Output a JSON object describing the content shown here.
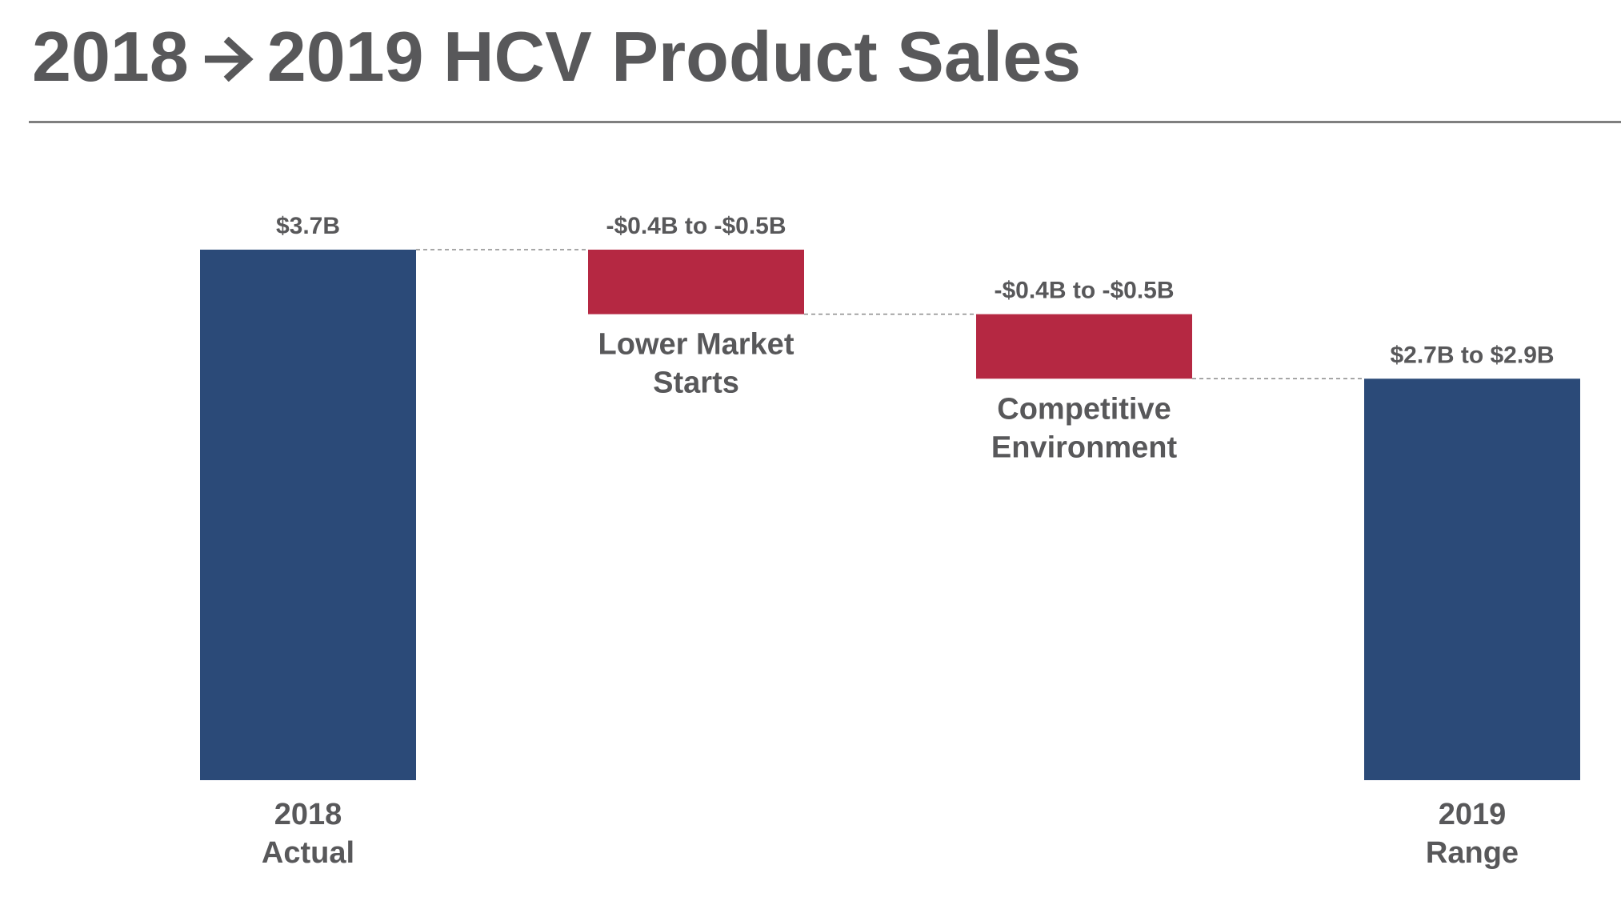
{
  "title": {
    "from_year": "2018",
    "to_text": "2019 HCV Product Sales",
    "arrow_icon": "right-arrow-icon"
  },
  "colors": {
    "total": "#2b4a78",
    "decrease": "#b52842",
    "text": "#58585a",
    "rule": "#7f7f7f"
  },
  "chart_data": {
    "type": "bar",
    "subtype": "waterfall",
    "unit": "$B",
    "ylim": [
      0,
      3.7
    ],
    "categories": [
      "2018 Actual",
      "Lower Market Starts",
      "Competitive Environment",
      "2019 Range"
    ],
    "category_label_lines": [
      [
        "2018",
        "Actual"
      ],
      [
        "Lower Market",
        "Starts"
      ],
      [
        "Competitive",
        "Environment"
      ],
      [
        "2019",
        "Range"
      ]
    ],
    "bars": [
      {
        "kind": "total",
        "start": 0,
        "end": 3.7,
        "label": "$3.7B"
      },
      {
        "kind": "decrease",
        "start": 3.7,
        "end": 3.25,
        "label": "-$0.4B to -$0.5B"
      },
      {
        "kind": "decrease",
        "start": 3.25,
        "end": 2.8,
        "label": "-$0.4B to -$0.5B"
      },
      {
        "kind": "total",
        "start": 0,
        "end": 2.8,
        "label": "$2.7B to $2.9B"
      }
    ],
    "connectors": "dashed",
    "grid": false,
    "legend": "none"
  }
}
